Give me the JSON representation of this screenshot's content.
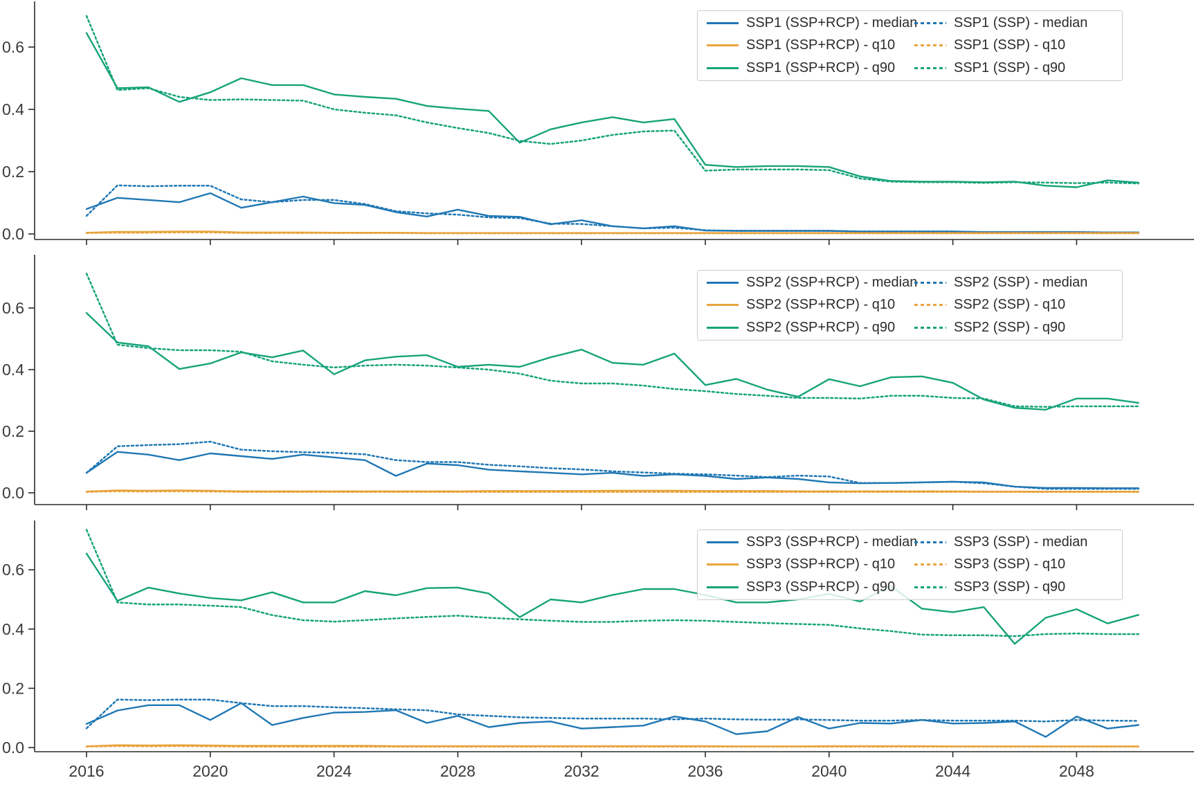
{
  "figure": {
    "background": "#ffffff"
  },
  "colors": {
    "median": "#1f77b4",
    "q10": "#e8a33c",
    "q90": "#16a379",
    "spine": "#2a2a2a",
    "tick_label": "#3a3a3a",
    "legend_border": "#cccccc"
  },
  "axis": {
    "x_tick_labels": [
      "2016",
      "2020",
      "2024",
      "2028",
      "2032",
      "2036",
      "2040",
      "2044",
      "2048"
    ],
    "x_tick_years": [
      2016,
      2020,
      2024,
      2028,
      2032,
      2036,
      2040,
      2044,
      2048
    ],
    "y_tick_labels": [
      "0.0",
      "0.2",
      "0.4",
      "0.6"
    ],
    "y_tick_values": [
      0.0,
      0.2,
      0.4,
      0.6
    ]
  },
  "years": [
    2016,
    2017,
    2018,
    2019,
    2020,
    2021,
    2022,
    2023,
    2024,
    2025,
    2026,
    2027,
    2028,
    2029,
    2030,
    2031,
    2032,
    2033,
    2034,
    2035,
    2036,
    2037,
    2038,
    2039,
    2040,
    2041,
    2042,
    2043,
    2044,
    2045,
    2046,
    2047,
    2048,
    2049,
    2050
  ],
  "chart_data": [
    {
      "type": "line",
      "panel": "SSP1",
      "x_range": [
        2014.4,
        2051.8
      ],
      "y_range": [
        -0.02,
        0.75
      ],
      "grid": false,
      "legend_position": "upper right",
      "legend_entries": [
        "SSP1 (SSP+RCP) - median",
        "SSP1 (SSP+RCP) - q10",
        "SSP1 (SSP+RCP) - q90",
        "SSP1 (SSP) - median",
        "SSP1 (SSP) - q10",
        "SSP1 (SSP) - q90"
      ],
      "series": [
        {
          "name": "SSP1 (SSP+RCP) - median",
          "style": "solid",
          "color_key": "median",
          "values": [
            0.08,
            0.116,
            0.109,
            0.102,
            0.131,
            0.084,
            0.102,
            0.12,
            0.099,
            0.093,
            0.07,
            0.056,
            0.078,
            0.058,
            0.055,
            0.031,
            0.044,
            0.025,
            0.018,
            0.025,
            0.011,
            0.01,
            0.01,
            0.01,
            0.01,
            0.008,
            0.008,
            0.008,
            0.008,
            0.006,
            0.006,
            0.006,
            0.006,
            0.005,
            0.005
          ]
        },
        {
          "name": "SSP1 (SSP+RCP) - q10",
          "style": "solid",
          "color_key": "q10",
          "values": [
            0.004,
            0.007,
            0.007,
            0.008,
            0.008,
            0.005,
            0.005,
            0.005,
            0.004,
            0.004,
            0.004,
            0.003,
            0.003,
            0.003,
            0.003,
            0.003,
            0.003,
            0.003,
            0.003,
            0.003,
            0.003,
            0.003,
            0.003,
            0.003,
            0.003,
            0.003,
            0.003,
            0.003,
            0.003,
            0.003,
            0.003,
            0.003,
            0.003,
            0.003,
            0.003
          ]
        },
        {
          "name": "SSP1 (SSP+RCP) - q90",
          "style": "solid",
          "color_key": "q90",
          "values": [
            0.645,
            0.468,
            0.471,
            0.424,
            0.455,
            0.5,
            0.478,
            0.478,
            0.448,
            0.44,
            0.434,
            0.411,
            0.402,
            0.395,
            0.293,
            0.336,
            0.358,
            0.375,
            0.358,
            0.369,
            0.222,
            0.215,
            0.218,
            0.218,
            0.215,
            0.185,
            0.17,
            0.168,
            0.168,
            0.166,
            0.168,
            0.155,
            0.15,
            0.172,
            0.165
          ]
        },
        {
          "name": "SSP1 (SSP) - median",
          "style": "dashed",
          "color_key": "median",
          "values": [
            0.058,
            0.156,
            0.153,
            0.155,
            0.155,
            0.111,
            0.102,
            0.109,
            0.109,
            0.096,
            0.073,
            0.066,
            0.062,
            0.053,
            0.051,
            0.033,
            0.032,
            0.025,
            0.018,
            0.02,
            0.012,
            0.01,
            0.01,
            0.01,
            0.01,
            0.008,
            0.008,
            0.008,
            0.008,
            0.006,
            0.006,
            0.006,
            0.006,
            0.005,
            0.005
          ]
        },
        {
          "name": "SSP1 (SSP) - q10",
          "style": "dashed",
          "color_key": "q10",
          "values": [
            0.003,
            0.004,
            0.004,
            0.005,
            0.005,
            0.003,
            0.003,
            0.003,
            0.003,
            0.003,
            0.003,
            0.002,
            0.002,
            0.002,
            0.002,
            0.002,
            0.002,
            0.002,
            0.002,
            0.002,
            0.002,
            0.002,
            0.002,
            0.002,
            0.002,
            0.002,
            0.002,
            0.002,
            0.002,
            0.002,
            0.002,
            0.002,
            0.002,
            0.002,
            0.002
          ]
        },
        {
          "name": "SSP1 (SSP) - q90",
          "style": "dashed",
          "color_key": "q90",
          "values": [
            0.7,
            0.462,
            0.468,
            0.44,
            0.43,
            0.432,
            0.43,
            0.428,
            0.4,
            0.389,
            0.381,
            0.358,
            0.34,
            0.324,
            0.299,
            0.289,
            0.3,
            0.318,
            0.329,
            0.332,
            0.203,
            0.207,
            0.207,
            0.207,
            0.205,
            0.178,
            0.168,
            0.166,
            0.166,
            0.164,
            0.166,
            0.165,
            0.163,
            0.165,
            0.162
          ]
        }
      ]
    },
    {
      "type": "line",
      "panel": "SSP2",
      "x_range": [
        2014.4,
        2051.8
      ],
      "y_range": [
        -0.04,
        0.77
      ],
      "grid": false,
      "legend_position": "upper right",
      "legend_entries": [
        "SSP2 (SSP+RCP) - median",
        "SSP2 (SSP+RCP) - q10",
        "SSP2 (SSP+RCP) - q90",
        "SSP2 (SSP) - median",
        "SSP2 (SSP) - q10",
        "SSP2 (SSP) - q90"
      ],
      "series": [
        {
          "name": "SSP2 (SSP+RCP) - median",
          "style": "solid",
          "color_key": "median",
          "values": [
            0.065,
            0.133,
            0.124,
            0.106,
            0.128,
            0.119,
            0.11,
            0.124,
            0.115,
            0.106,
            0.055,
            0.095,
            0.09,
            0.075,
            0.07,
            0.065,
            0.06,
            0.065,
            0.055,
            0.06,
            0.055,
            0.045,
            0.05,
            0.045,
            0.034,
            0.031,
            0.032,
            0.034,
            0.036,
            0.034,
            0.02,
            0.016,
            0.016,
            0.015,
            0.015
          ]
        },
        {
          "name": "SSP2 (SSP+RCP) - q10",
          "style": "solid",
          "color_key": "q10",
          "values": [
            0.004,
            0.008,
            0.007,
            0.008,
            0.007,
            0.005,
            0.005,
            0.005,
            0.005,
            0.005,
            0.005,
            0.005,
            0.005,
            0.006,
            0.006,
            0.006,
            0.006,
            0.007,
            0.007,
            0.007,
            0.006,
            0.006,
            0.006,
            0.005,
            0.005,
            0.005,
            0.005,
            0.005,
            0.005,
            0.004,
            0.004,
            0.004,
            0.004,
            0.004,
            0.004
          ]
        },
        {
          "name": "SSP2 (SSP+RCP) - q90",
          "style": "solid",
          "color_key": "q90",
          "values": [
            0.584,
            0.488,
            0.476,
            0.402,
            0.42,
            0.456,
            0.44,
            0.462,
            0.385,
            0.43,
            0.442,
            0.447,
            0.409,
            0.416,
            0.409,
            0.44,
            0.465,
            0.422,
            0.416,
            0.452,
            0.35,
            0.37,
            0.335,
            0.312,
            0.369,
            0.346,
            0.375,
            0.378,
            0.357,
            0.303,
            0.276,
            0.27,
            0.306,
            0.306,
            0.292
          ]
        },
        {
          "name": "SSP2 (SSP) - median",
          "style": "dashed",
          "color_key": "median",
          "values": [
            0.065,
            0.151,
            0.155,
            0.158,
            0.166,
            0.14,
            0.135,
            0.132,
            0.13,
            0.125,
            0.106,
            0.1,
            0.1,
            0.091,
            0.086,
            0.08,
            0.076,
            0.07,
            0.066,
            0.062,
            0.06,
            0.056,
            0.051,
            0.056,
            0.053,
            0.032,
            0.032,
            0.034,
            0.036,
            0.031,
            0.02,
            0.013,
            0.013,
            0.013,
            0.013
          ]
        },
        {
          "name": "SSP2 (SSP) - q10",
          "style": "dashed",
          "color_key": "q10",
          "values": [
            0.003,
            0.005,
            0.004,
            0.005,
            0.004,
            0.003,
            0.003,
            0.003,
            0.003,
            0.003,
            0.003,
            0.003,
            0.003,
            0.003,
            0.003,
            0.003,
            0.003,
            0.003,
            0.003,
            0.003,
            0.003,
            0.003,
            0.003,
            0.003,
            0.003,
            0.003,
            0.003,
            0.003,
            0.003,
            0.003,
            0.003,
            0.003,
            0.003,
            0.003,
            0.003
          ]
        },
        {
          "name": "SSP2 (SSP) - q90",
          "style": "dashed",
          "color_key": "q90",
          "values": [
            0.712,
            0.481,
            0.47,
            0.463,
            0.463,
            0.458,
            0.427,
            0.416,
            0.407,
            0.413,
            0.416,
            0.413,
            0.407,
            0.4,
            0.387,
            0.364,
            0.355,
            0.355,
            0.348,
            0.337,
            0.33,
            0.321,
            0.315,
            0.308,
            0.308,
            0.306,
            0.315,
            0.315,
            0.308,
            0.306,
            0.281,
            0.279,
            0.281,
            0.281,
            0.281
          ]
        }
      ]
    },
    {
      "type": "line",
      "panel": "SSP3",
      "x_range": [
        2014.4,
        2051.8
      ],
      "y_range": [
        -0.02,
        0.77
      ],
      "grid": false,
      "legend_position": "upper right",
      "legend_entries": [
        "SSP3 (SSP+RCP) - median",
        "SSP3 (SSP+RCP) - q10",
        "SSP3 (SSP+RCP) - q90",
        "SSP3 (SSP) - median",
        "SSP3 (SSP) - q10",
        "SSP3 (SSP) - q90"
      ],
      "series": [
        {
          "name": "SSP3 (SSP+RCP) - median",
          "style": "solid",
          "color_key": "median",
          "values": [
            0.08,
            0.125,
            0.143,
            0.143,
            0.093,
            0.15,
            0.076,
            0.1,
            0.118,
            0.12,
            0.126,
            0.083,
            0.107,
            0.069,
            0.083,
            0.088,
            0.064,
            0.069,
            0.074,
            0.105,
            0.088,
            0.045,
            0.055,
            0.103,
            0.064,
            0.083,
            0.081,
            0.093,
            0.081,
            0.083,
            0.088,
            0.036,
            0.105,
            0.064,
            0.076
          ]
        },
        {
          "name": "SSP3 (SSP+RCP) - q10",
          "style": "solid",
          "color_key": "q10",
          "values": [
            0.004,
            0.008,
            0.007,
            0.008,
            0.007,
            0.006,
            0.006,
            0.006,
            0.006,
            0.006,
            0.005,
            0.005,
            0.005,
            0.005,
            0.005,
            0.005,
            0.005,
            0.005,
            0.005,
            0.005,
            0.005,
            0.004,
            0.004,
            0.004,
            0.005,
            0.005,
            0.005,
            0.005,
            0.004,
            0.004,
            0.004,
            0.004,
            0.004,
            0.004,
            0.004
          ]
        },
        {
          "name": "SSP3 (SSP+RCP) - q90",
          "style": "solid",
          "color_key": "q90",
          "values": [
            0.655,
            0.495,
            0.54,
            0.52,
            0.505,
            0.497,
            0.524,
            0.49,
            0.49,
            0.528,
            0.514,
            0.538,
            0.54,
            0.52,
            0.44,
            0.5,
            0.49,
            0.515,
            0.535,
            0.535,
            0.515,
            0.49,
            0.49,
            0.5,
            0.519,
            0.493,
            0.545,
            0.469,
            0.457,
            0.474,
            0.35,
            0.438,
            0.467,
            0.419,
            0.448
          ]
        },
        {
          "name": "SSP3 (SSP) - median",
          "style": "dashed",
          "color_key": "median",
          "values": [
            0.065,
            0.162,
            0.16,
            0.162,
            0.162,
            0.15,
            0.14,
            0.14,
            0.136,
            0.133,
            0.129,
            0.126,
            0.112,
            0.107,
            0.102,
            0.1,
            0.098,
            0.098,
            0.098,
            0.095,
            0.098,
            0.095,
            0.094,
            0.095,
            0.093,
            0.091,
            0.091,
            0.093,
            0.091,
            0.091,
            0.091,
            0.088,
            0.093,
            0.091,
            0.09
          ]
        },
        {
          "name": "SSP3 (SSP) - q10",
          "style": "dashed",
          "color_key": "q10",
          "values": [
            0.003,
            0.005,
            0.004,
            0.005,
            0.004,
            0.003,
            0.003,
            0.003,
            0.003,
            0.003,
            0.003,
            0.003,
            0.003,
            0.003,
            0.003,
            0.003,
            0.003,
            0.003,
            0.003,
            0.003,
            0.003,
            0.003,
            0.003,
            0.003,
            0.003,
            0.003,
            0.003,
            0.003,
            0.003,
            0.003,
            0.003,
            0.003,
            0.003,
            0.003,
            0.003
          ]
        },
        {
          "name": "SSP3 (SSP) - q90",
          "style": "dashed",
          "color_key": "q90",
          "values": [
            0.735,
            0.49,
            0.483,
            0.483,
            0.479,
            0.474,
            0.447,
            0.43,
            0.425,
            0.43,
            0.436,
            0.441,
            0.445,
            0.438,
            0.433,
            0.428,
            0.424,
            0.424,
            0.428,
            0.43,
            0.428,
            0.424,
            0.42,
            0.417,
            0.414,
            0.402,
            0.393,
            0.381,
            0.379,
            0.379,
            0.376,
            0.383,
            0.385,
            0.383,
            0.383
          ]
        }
      ]
    }
  ]
}
